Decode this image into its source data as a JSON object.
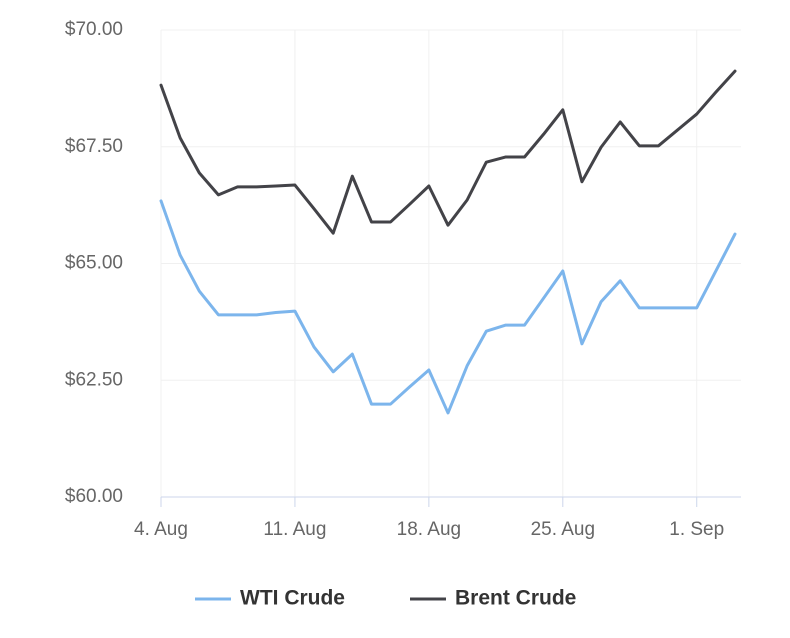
{
  "chart_data": {
    "type": "line",
    "categories": [
      "4. Aug",
      null,
      null,
      null,
      null,
      null,
      null,
      "11. Aug",
      null,
      null,
      null,
      null,
      null,
      null,
      "18. Aug",
      null,
      null,
      null,
      null,
      null,
      null,
      "25. Aug",
      null,
      null,
      null,
      null,
      null,
      null,
      "1. Sep",
      null,
      null
    ],
    "series": [
      {
        "name": "WTI Crude",
        "color": "#7cb5ec",
        "values": [
          66.34,
          65.18,
          64.41,
          63.9,
          63.9,
          63.9,
          63.95,
          63.98,
          63.21,
          62.68,
          63.06,
          61.99,
          61.99,
          62.36,
          62.72,
          61.8,
          62.81,
          63.55,
          63.68,
          63.68,
          64.26,
          64.84,
          63.28,
          64.18,
          64.63,
          64.05,
          64.05,
          64.05,
          64.05,
          64.84,
          65.63
        ]
      },
      {
        "name": "Brent Crude",
        "color": "#434348",
        "values": [
          68.82,
          67.69,
          66.94,
          66.47,
          66.64,
          66.64,
          66.66,
          66.68,
          66.17,
          65.65,
          66.87,
          65.89,
          65.89,
          66.27,
          66.66,
          65.82,
          66.36,
          67.17,
          67.28,
          67.28,
          67.77,
          68.29,
          66.75,
          67.49,
          68.03,
          67.52,
          67.52,
          67.86,
          68.2,
          68.67,
          69.12
        ]
      }
    ],
    "ylim": [
      60,
      70
    ],
    "yticks": [
      {
        "value": 60,
        "label": "$60.00"
      },
      {
        "value": 62.5,
        "label": "$62.50"
      },
      {
        "value": 65,
        "label": "$65.00"
      },
      {
        "value": 67.5,
        "label": "$67.50"
      },
      {
        "value": 70,
        "label": "$70.00"
      }
    ],
    "grid": true,
    "legend": "bottom"
  }
}
